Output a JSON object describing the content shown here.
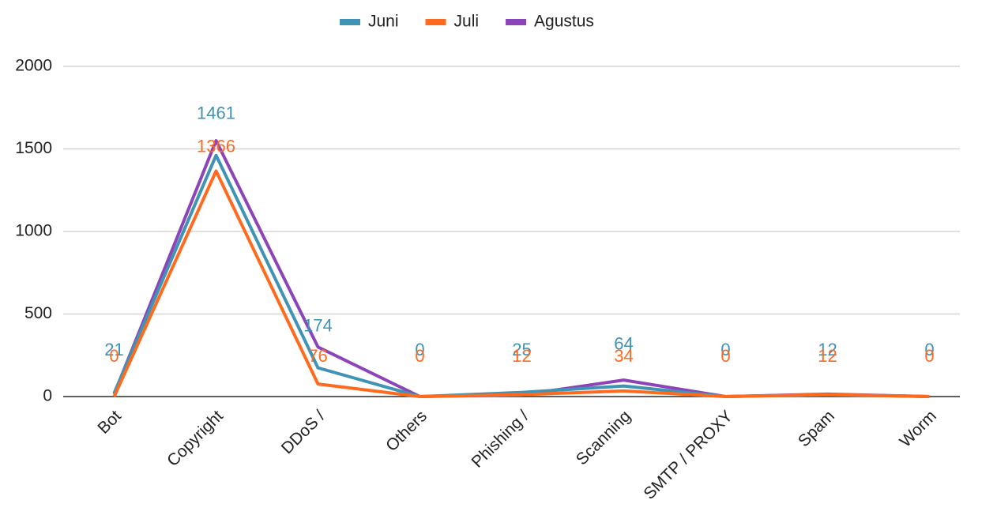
{
  "chart_data": {
    "type": "line",
    "categories": [
      "Bot",
      "Copyright",
      "DDoS /",
      "Others",
      "Phishing /",
      "Scanning",
      "SMTP / PROXY",
      "Spam",
      "Worm"
    ],
    "series": [
      {
        "name": "Juni",
        "color": "#3f93b4",
        "values": [
          21,
          1461,
          174,
          0,
          25,
          64,
          0,
          12,
          0
        ],
        "show_labels": true
      },
      {
        "name": "Juli",
        "color": "#ff6a1f",
        "values": [
          0,
          1366,
          76,
          0,
          12,
          34,
          0,
          12,
          0
        ],
        "show_labels": true
      },
      {
        "name": "Agustus",
        "color": "#8c44b8",
        "values": [
          15,
          1550,
          300,
          0,
          10,
          100,
          0,
          15,
          0
        ],
        "show_labels": false
      }
    ],
    "ylim": [
      0,
      2000
    ],
    "yticks": [
      0,
      500,
      1000,
      1500,
      2000
    ],
    "grid": true,
    "legend": "top"
  }
}
